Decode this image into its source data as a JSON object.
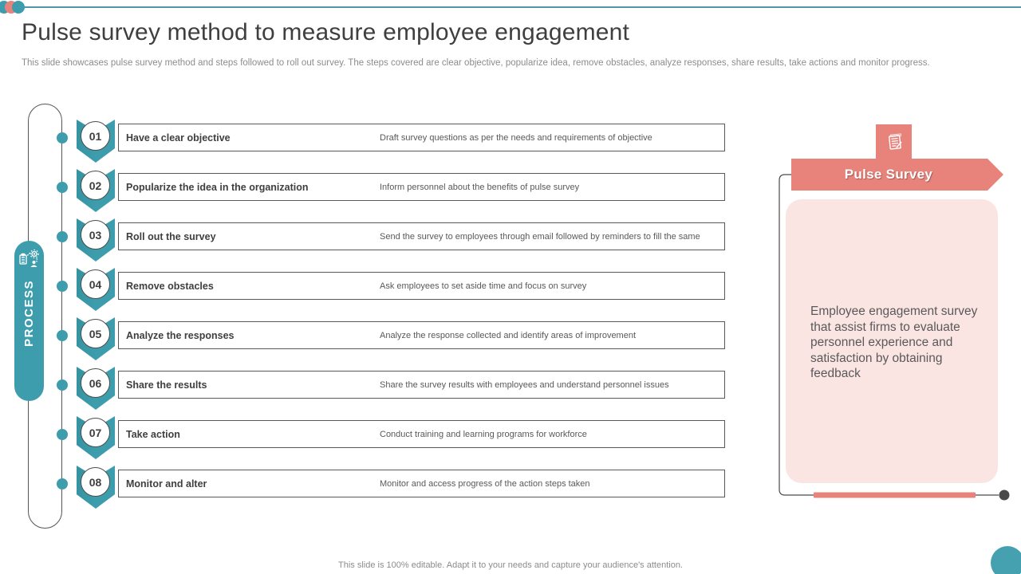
{
  "slide": {
    "title": "Pulse survey method to measure employee engagement",
    "subtitle": "This slide showcases pulse survey method and steps followed to roll out survey.  The steps covered are clear objective, popularize idea, remove obstacles, analyze responses, share results, take actions and monitor progress.",
    "footer": "This slide is 100% editable. Adapt it to your needs and capture your audience's attention."
  },
  "process": {
    "label": "PROCESS",
    "icon": "workflow-people-gear-icon"
  },
  "steps": [
    {
      "num": "01",
      "title": "Have a clear objective",
      "desc": "Draft survey questions as per the needs and requirements of objective"
    },
    {
      "num": "02",
      "title": "Popularize the idea in the organization",
      "desc": "Inform personnel about the benefits of pulse survey"
    },
    {
      "num": "03",
      "title": "Roll out the survey",
      "desc": "Send the survey to employees through email followed by reminders to fill the same"
    },
    {
      "num": "04",
      "title": "Remove obstacles",
      "desc": "Ask employees to set aside time and focus on survey"
    },
    {
      "num": "05",
      "title": "Analyze the responses",
      "desc": "Analyze  the response collected and identify areas of improvement"
    },
    {
      "num": "06",
      "title": "Share the results",
      "desc": "Share the survey  results with employees and understand personnel issues"
    },
    {
      "num": "07",
      "title": "Take action",
      "desc": "Conduct training and learning programs for workforce"
    },
    {
      "num": "08",
      "title": "Monitor and alter",
      "desc": "Monitor and access progress of the action steps taken"
    }
  ],
  "pulse_panel": {
    "banner_label": "Pulse Survey",
    "icon": "survey-document-icon",
    "description": "Employee engagement survey  that  assist firms to evaluate  personnel experience and satisfaction by obtaining feedback"
  },
  "colors": {
    "teal": "#3D9DAD",
    "salmon": "#E8837B",
    "pink": "#FBE5E3"
  }
}
